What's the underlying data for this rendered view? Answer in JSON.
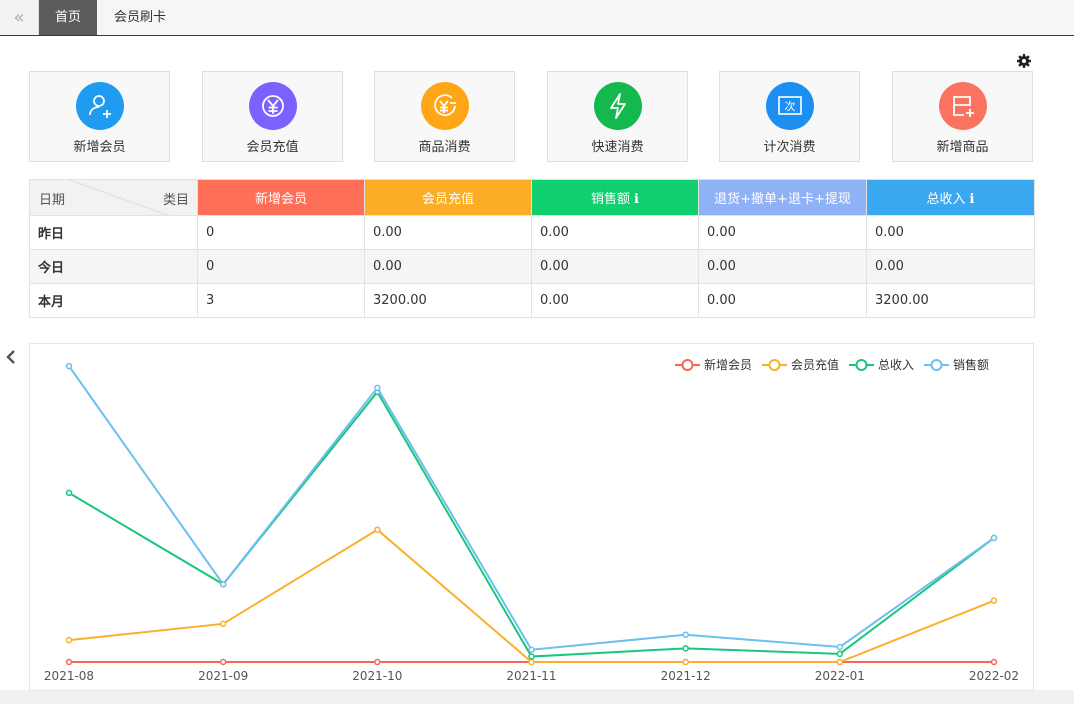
{
  "topbar": {
    "tabs": [
      {
        "label": "首页",
        "active": true
      },
      {
        "label": "会员刷卡",
        "active": false
      }
    ]
  },
  "actions": [
    {
      "label": "新增会员",
      "icon": "add-member-icon",
      "color": "#1f9bf0"
    },
    {
      "label": "会员充值",
      "icon": "yen-recharge-icon",
      "color": "#7b61ff"
    },
    {
      "label": "商品消费",
      "icon": "product-consume-icon",
      "color": "#ffa516"
    },
    {
      "label": "快速消费",
      "icon": "lightning-icon",
      "color": "#15b84e"
    },
    {
      "label": "计次消费",
      "icon": "count-consume-icon",
      "color": "#1d8ff0"
    },
    {
      "label": "新增商品",
      "icon": "add-product-icon",
      "color": "#fa7260"
    }
  ],
  "stats": {
    "corner_left": "日期",
    "corner_right": "类目",
    "columns": [
      {
        "label": "新增会员",
        "color": "#ff6f58",
        "info": false
      },
      {
        "label": "会员充值",
        "color": "#fbad25",
        "info": false
      },
      {
        "label": "销售额",
        "color": "#0fcf6f",
        "info": true
      },
      {
        "label": "退货+撤单+退卡+提现",
        "color": "#8fb1f6",
        "info": false
      },
      {
        "label": "总收入",
        "color": "#3aa8f0",
        "info": true
      }
    ],
    "info_mark": "ℹ",
    "rows": [
      {
        "label": "昨日",
        "values": [
          "0",
          "0.00",
          "0.00",
          "0.00",
          "0.00"
        ]
      },
      {
        "label": "今日",
        "values": [
          "0",
          "0.00",
          "0.00",
          "0.00",
          "0.00"
        ]
      },
      {
        "label": "本月",
        "values": [
          "3",
          "3200.00",
          "0.00",
          "0.00",
          "3200.00"
        ]
      }
    ]
  },
  "chart_data": {
    "type": "line",
    "x": [
      "2021-08",
      "2021-09",
      "2021-10",
      "2021-11",
      "2021-12",
      "2022-01",
      "2022-02"
    ],
    "ylim": [
      0,
      220
    ],
    "grid": false,
    "legend_position": "top-right",
    "series": [
      {
        "name": "新增会员",
        "color": "#f2685a",
        "values": [
          0,
          0,
          0,
          0,
          0,
          0,
          0
        ]
      },
      {
        "name": "会员充值",
        "color": "#fbb02c",
        "values": [
          16,
          28,
          97,
          0,
          0,
          0,
          45
        ]
      },
      {
        "name": "总收入",
        "color": "#19c77b",
        "values": [
          124,
          57,
          198,
          4,
          10,
          6,
          91
        ]
      },
      {
        "name": "销售额",
        "color": "#6cbfef",
        "values": [
          217,
          57,
          201,
          9,
          20,
          11,
          91
        ]
      }
    ]
  }
}
